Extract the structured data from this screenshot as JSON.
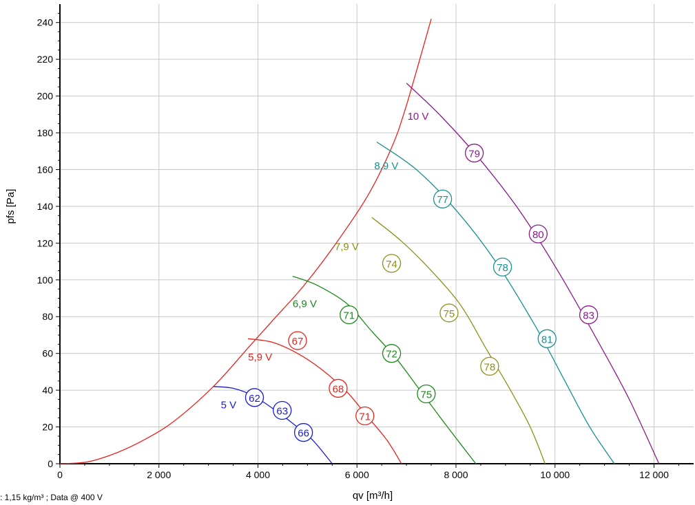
{
  "chart_data": {
    "type": "line",
    "xlabel": "qv [m³/h]",
    "ylabel": "pfs [Pa]",
    "footnote": ": 1,15 kg/m³ ; Data @ 400 V",
    "xlim": [
      0,
      12800
    ],
    "ylim": [
      0,
      250
    ],
    "x_ticks": [
      0,
      2000,
      4000,
      6000,
      8000,
      10000,
      12000
    ],
    "x_tick_labels": [
      "0",
      "2 000",
      "4 000",
      "6 000",
      "8 000",
      "10 000",
      "12 000"
    ],
    "y_ticks": [
      0,
      20,
      40,
      60,
      80,
      100,
      120,
      140,
      160,
      180,
      200,
      220,
      240
    ],
    "y_tick_labels": [
      "0",
      "20",
      "40",
      "60",
      "80",
      "100",
      "120",
      "140",
      "160",
      "180",
      "200",
      "220",
      "240"
    ],
    "grid": true,
    "boundary": {
      "color": "#e8211b",
      "points": [
        [
          0,
          0
        ],
        [
          560,
          1
        ],
        [
          1150,
          6
        ],
        [
          1700,
          13
        ],
        [
          2300,
          23
        ],
        [
          3100,
          42
        ],
        [
          3800,
          63
        ],
        [
          4300,
          78
        ],
        [
          4900,
          96
        ],
        [
          5500,
          117
        ],
        [
          6200,
          145
        ],
        [
          6700,
          172
        ],
        [
          7000,
          195
        ],
        [
          7500,
          242
        ]
      ]
    },
    "series": [
      {
        "name": "5 V",
        "color": "#1a1ad6",
        "points": [
          [
            3100,
            42
          ],
          [
            3500,
            41
          ],
          [
            3900,
            37
          ],
          [
            4300,
            30
          ],
          [
            4700,
            22
          ],
          [
            5100,
            13
          ],
          [
            5500,
            0
          ]
        ],
        "markers": [
          {
            "x": 3930,
            "y": 36,
            "label": "62"
          },
          {
            "x": 4490,
            "y": 29,
            "label": "63"
          },
          {
            "x": 4920,
            "y": 17,
            "label": "66"
          }
        ],
        "label_pos": [
          3250,
          32
        ]
      },
      {
        "name": "5,9 V",
        "color": "#e8211b",
        "points": [
          [
            3800,
            68
          ],
          [
            4300,
            66
          ],
          [
            4800,
            60
          ],
          [
            5300,
            51
          ],
          [
            5800,
            39
          ],
          [
            6200,
            26
          ],
          [
            6600,
            13
          ],
          [
            6900,
            0
          ]
        ],
        "markers": [
          {
            "x": 4800,
            "y": 67,
            "label": "67"
          },
          {
            "x": 5620,
            "y": 41,
            "label": "68"
          },
          {
            "x": 6160,
            "y": 26,
            "label": "71"
          }
        ],
        "label_pos": [
          3800,
          58
        ]
      },
      {
        "name": "6,9 V",
        "color": "#1a8a1a",
        "points": [
          [
            4700,
            102
          ],
          [
            5200,
            97
          ],
          [
            5800,
            87
          ],
          [
            6300,
            72
          ],
          [
            6800,
            57
          ],
          [
            7300,
            39
          ],
          [
            7800,
            21
          ],
          [
            8400,
            0
          ]
        ],
        "markers": [
          {
            "x": 5840,
            "y": 81,
            "label": "71"
          },
          {
            "x": 6700,
            "y": 60,
            "label": "72"
          },
          {
            "x": 7400,
            "y": 38,
            "label": "75"
          }
        ],
        "label_pos": [
          4700,
          87
        ]
      },
      {
        "name": "7,9 V",
        "color": "#8f8f14",
        "points": [
          [
            6300,
            134
          ],
          [
            6900,
            121
          ],
          [
            7500,
            105
          ],
          [
            8100,
            86
          ],
          [
            8600,
            63
          ],
          [
            9100,
            40
          ],
          [
            9500,
            20
          ],
          [
            9800,
            0
          ]
        ],
        "markers": [
          {
            "x": 6700,
            "y": 109,
            "label": "74"
          },
          {
            "x": 7860,
            "y": 82,
            "label": "75"
          },
          {
            "x": 8680,
            "y": 53,
            "label": "78"
          }
        ],
        "label_pos": [
          5550,
          118
        ]
      },
      {
        "name": "8,9 V",
        "color": "#17908f",
        "points": [
          [
            6400,
            175
          ],
          [
            7200,
            160
          ],
          [
            8000,
            138
          ],
          [
            8800,
            110
          ],
          [
            9600,
            75
          ],
          [
            10200,
            45
          ],
          [
            10700,
            20
          ],
          [
            11200,
            0
          ]
        ],
        "markers": [
          {
            "x": 7730,
            "y": 144,
            "label": "77"
          },
          {
            "x": 8940,
            "y": 107,
            "label": "78"
          },
          {
            "x": 9840,
            "y": 68,
            "label": "81"
          }
        ],
        "label_pos": [
          6350,
          162
        ]
      },
      {
        "name": "10 V",
        "color": "#8a1a8a",
        "points": [
          [
            7000,
            207
          ],
          [
            7700,
            189
          ],
          [
            8500,
            165
          ],
          [
            9300,
            137
          ],
          [
            10100,
            103
          ],
          [
            10900,
            65
          ],
          [
            11500,
            35
          ],
          [
            12100,
            0
          ]
        ],
        "markers": [
          {
            "x": 8370,
            "y": 169,
            "label": "79"
          },
          {
            "x": 9660,
            "y": 125,
            "label": "80"
          },
          {
            "x": 10680,
            "y": 81,
            "label": "83"
          }
        ],
        "label_pos": [
          7020,
          189
        ]
      }
    ]
  }
}
